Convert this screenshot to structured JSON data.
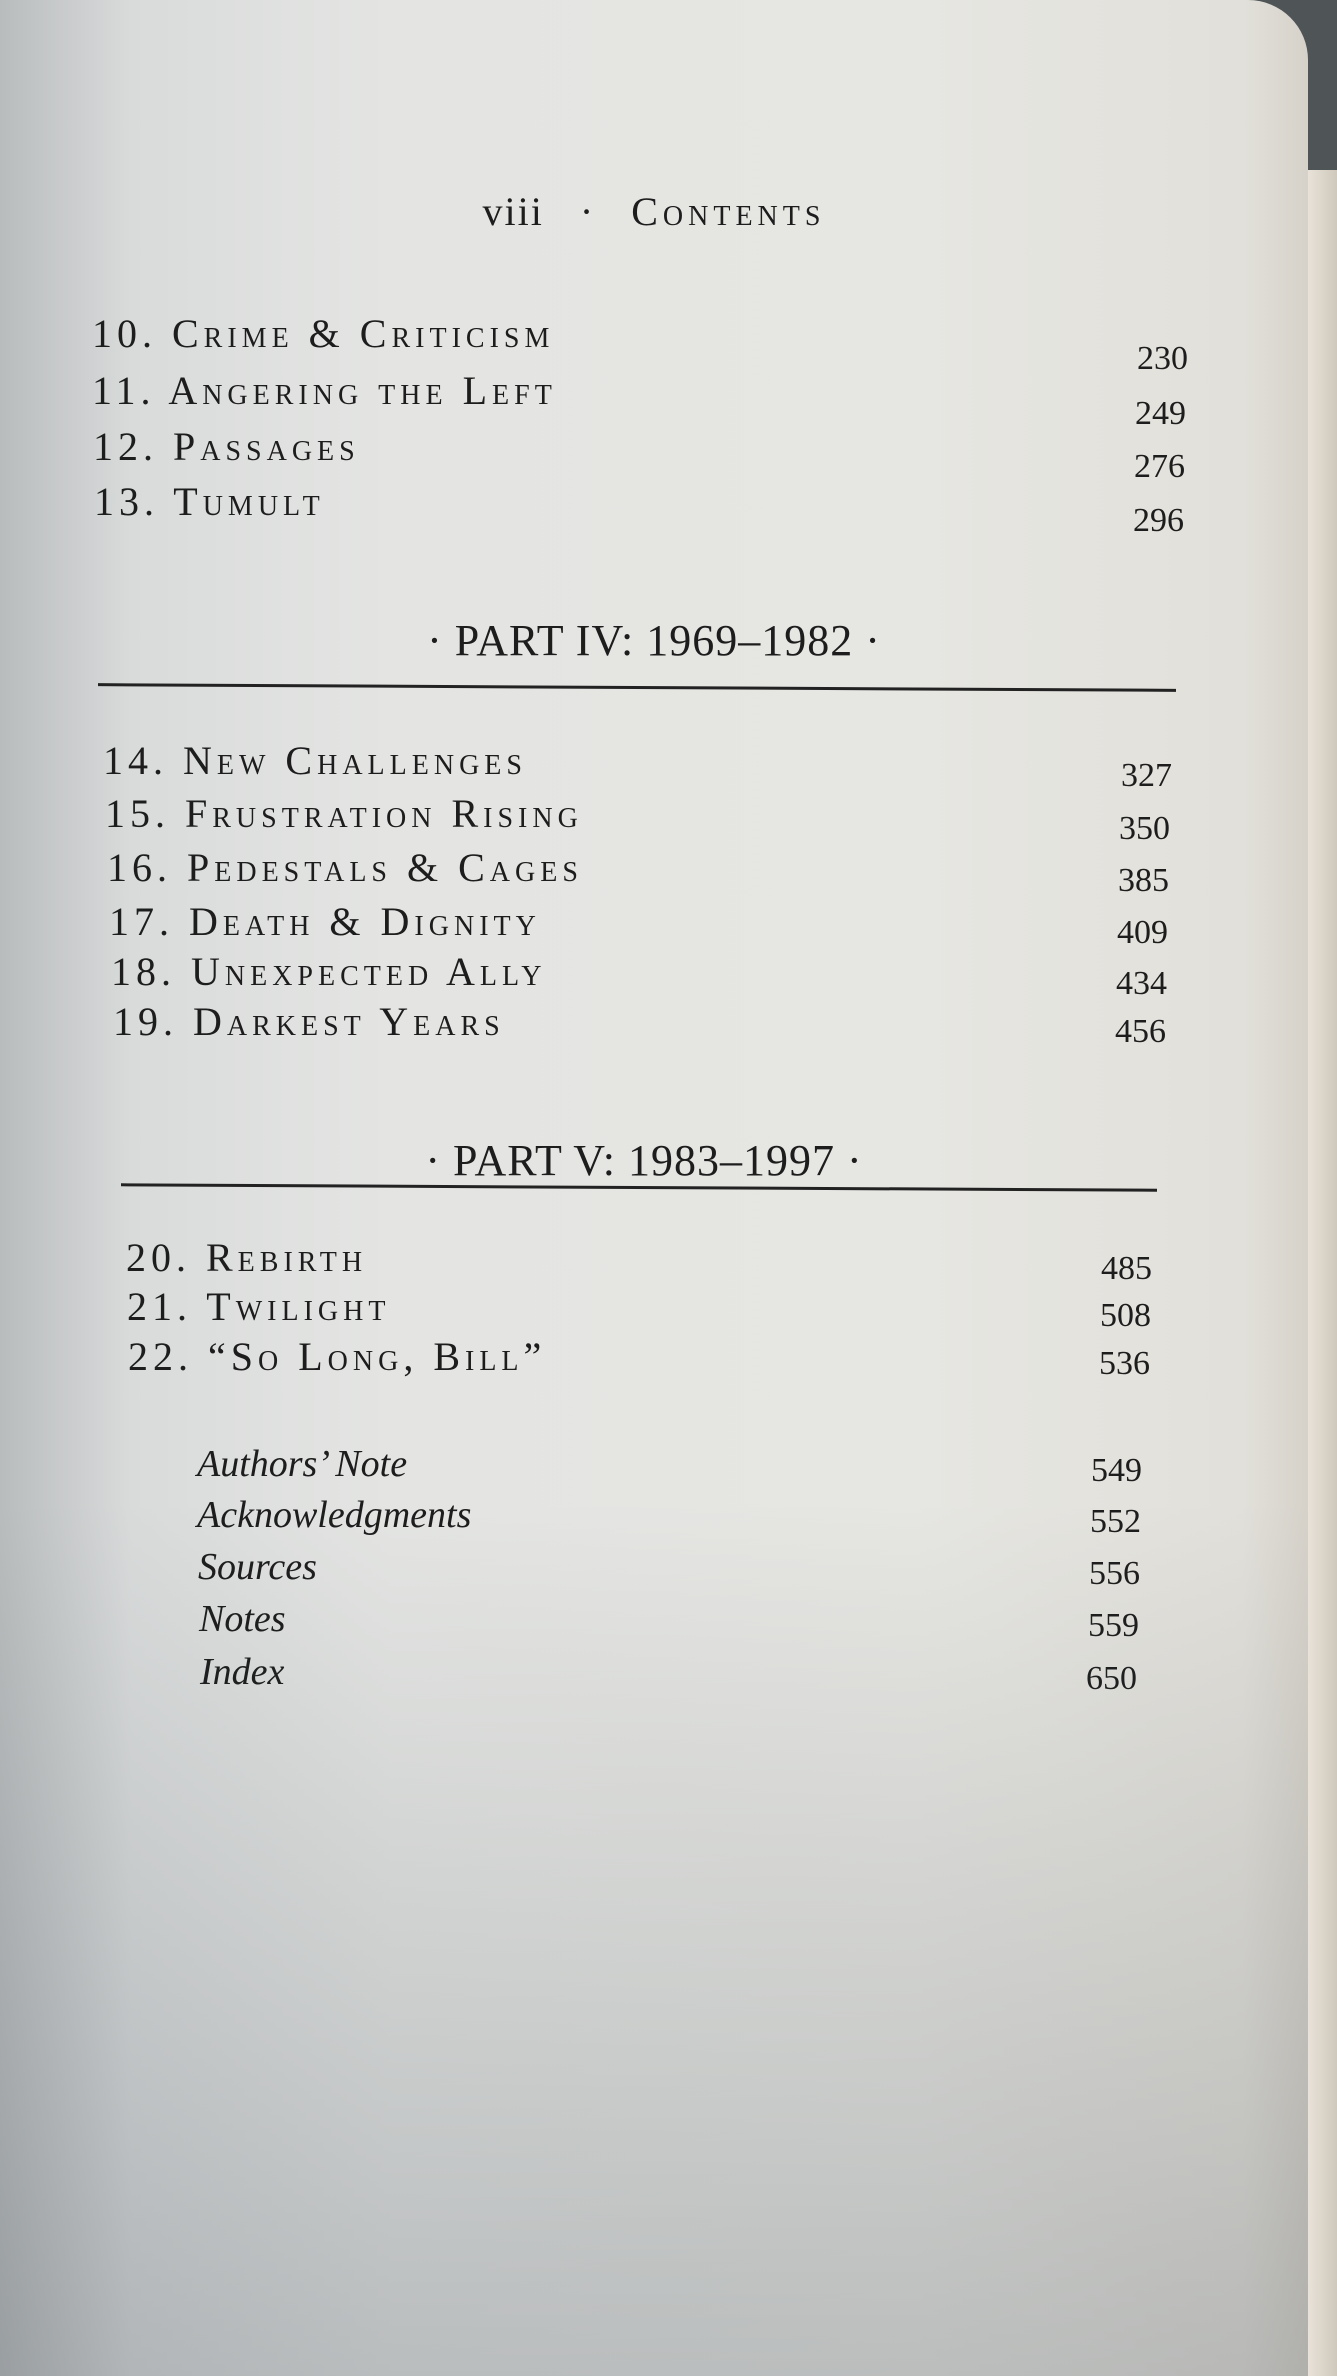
{
  "header": {
    "page_number": "viii",
    "separator": "·",
    "title": "Contents"
  },
  "sections": [
    {
      "chapters": [
        {
          "number": "10.",
          "title": "Crime & Criticism",
          "page": "230"
        },
        {
          "number": "11.",
          "title": "Angering the Left",
          "page": "249"
        },
        {
          "number": "12.",
          "title": "Passages",
          "page": "276"
        },
        {
          "number": "13.",
          "title": "Tumult",
          "page": "296"
        }
      ]
    },
    {
      "part_title": "· PART IV: 1969–1982 ·",
      "chapters": [
        {
          "number": "14.",
          "title": "New Challenges",
          "page": "327"
        },
        {
          "number": "15.",
          "title": "Frustration Rising",
          "page": "350"
        },
        {
          "number": "16.",
          "title": "Pedestals & Cages",
          "page": "385"
        },
        {
          "number": "17.",
          "title": "Death & Dignity",
          "page": "409"
        },
        {
          "number": "18.",
          "title": "Unexpected Ally",
          "page": "434"
        },
        {
          "number": "19.",
          "title": "Darkest Years",
          "page": "456"
        }
      ]
    },
    {
      "part_title": "· PART V: 1983–1997 ·",
      "chapters": [
        {
          "number": "20.",
          "title": "Rebirth",
          "page": "485"
        },
        {
          "number": "21.",
          "title": "Twilight",
          "page": "508"
        },
        {
          "number": "22.",
          "title": "“So Long, Bill”",
          "page": "536"
        }
      ]
    }
  ],
  "back_matter": [
    {
      "title": "Authors’ Note",
      "page": "549"
    },
    {
      "title": "Acknowledgments",
      "page": "552"
    },
    {
      "title": "Sources",
      "page": "556"
    },
    {
      "title": "Notes",
      "page": "559"
    },
    {
      "title": "Index",
      "page": "650"
    }
  ]
}
